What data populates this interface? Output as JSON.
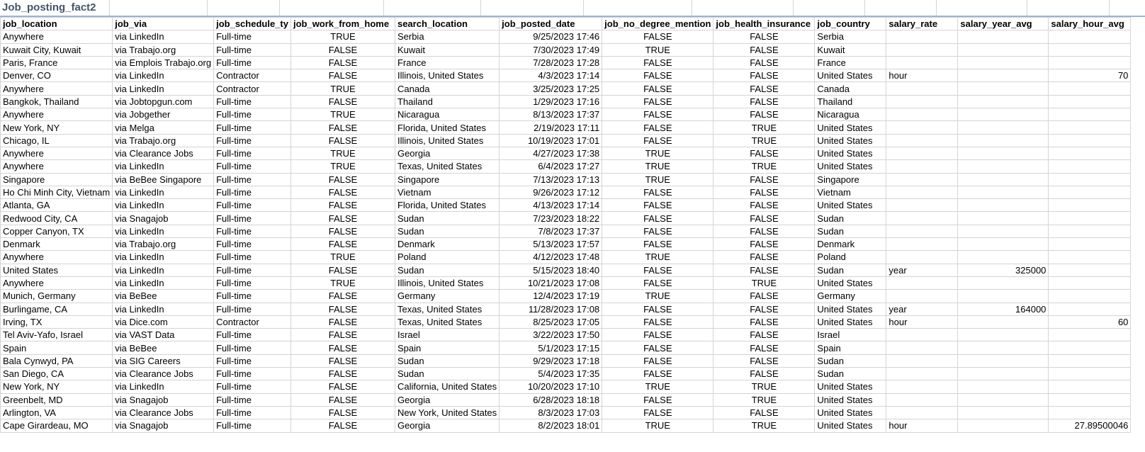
{
  "sheet_title": "Job_posting_fact2",
  "columns": [
    "job_location",
    "job_via",
    "job_schedule_ty",
    "job_work_from_home",
    "search_location",
    "job_posted_date",
    "job_no_degree_mention",
    "job_health_insurance",
    "job_country",
    "salary_rate",
    "salary_year_avg",
    "salary_hour_avg"
  ],
  "rows": [
    [
      "Anywhere",
      "via LinkedIn",
      "Full-time",
      "TRUE",
      "Serbia",
      "9/25/2023 17:46",
      "FALSE",
      "FALSE",
      "Serbia",
      "",
      "",
      ""
    ],
    [
      "Kuwait City, Kuwait",
      "via Trabajo.org",
      "Full-time",
      "FALSE",
      "Kuwait",
      "7/30/2023 17:49",
      "TRUE",
      "FALSE",
      "Kuwait",
      "",
      "",
      ""
    ],
    [
      "Paris, France",
      "via Emplois Trabajo.org",
      "Full-time",
      "FALSE",
      "France",
      "7/28/2023 17:28",
      "FALSE",
      "FALSE",
      "France",
      "",
      "",
      ""
    ],
    [
      "Denver, CO",
      "via LinkedIn",
      "Contractor",
      "FALSE",
      "Illinois, United States",
      "4/3/2023 17:14",
      "FALSE",
      "FALSE",
      "United States",
      "hour",
      "",
      "70"
    ],
    [
      "Anywhere",
      "via LinkedIn",
      "Contractor",
      "TRUE",
      "Canada",
      "3/25/2023 17:25",
      "FALSE",
      "FALSE",
      "Canada",
      "",
      "",
      ""
    ],
    [
      "Bangkok, Thailand",
      "via Jobtopgun.com",
      "Full-time",
      "FALSE",
      "Thailand",
      "1/29/2023 17:16",
      "FALSE",
      "FALSE",
      "Thailand",
      "",
      "",
      ""
    ],
    [
      "Anywhere",
      "via Jobgether",
      "Full-time",
      "TRUE",
      "Nicaragua",
      "8/13/2023 17:37",
      "FALSE",
      "FALSE",
      "Nicaragua",
      "",
      "",
      ""
    ],
    [
      "New York, NY",
      "via Melga",
      "Full-time",
      "FALSE",
      "Florida, United States",
      "2/19/2023 17:11",
      "FALSE",
      "TRUE",
      "United States",
      "",
      "",
      ""
    ],
    [
      "Chicago, IL",
      "via Trabajo.org",
      "Full-time",
      "FALSE",
      "Illinois, United States",
      "10/19/2023 17:01",
      "FALSE",
      "TRUE",
      "United States",
      "",
      "",
      ""
    ],
    [
      "Anywhere",
      "via Clearance Jobs",
      "Full-time",
      "TRUE",
      "Georgia",
      "4/27/2023 17:38",
      "TRUE",
      "FALSE",
      "United States",
      "",
      "",
      ""
    ],
    [
      "Anywhere",
      "via LinkedIn",
      "Full-time",
      "TRUE",
      "Texas, United States",
      "6/4/2023 17:27",
      "TRUE",
      "TRUE",
      "United States",
      "",
      "",
      ""
    ],
    [
      "Singapore",
      "via BeBee Singapore",
      "Full-time",
      "FALSE",
      "Singapore",
      "7/13/2023 17:13",
      "TRUE",
      "FALSE",
      "Singapore",
      "",
      "",
      ""
    ],
    [
      "Ho Chi Minh City, Vietnam",
      "via LinkedIn",
      "Full-time",
      "FALSE",
      "Vietnam",
      "9/26/2023 17:12",
      "FALSE",
      "FALSE",
      "Vietnam",
      "",
      "",
      ""
    ],
    [
      "Atlanta, GA",
      "via LinkedIn",
      "Full-time",
      "FALSE",
      "Florida, United States",
      "4/13/2023 17:14",
      "FALSE",
      "FALSE",
      "United States",
      "",
      "",
      ""
    ],
    [
      "Redwood City, CA",
      "via Snagajob",
      "Full-time",
      "FALSE",
      "Sudan",
      "7/23/2023 18:22",
      "FALSE",
      "FALSE",
      "Sudan",
      "",
      "",
      ""
    ],
    [
      "Copper Canyon, TX",
      "via LinkedIn",
      "Full-time",
      "FALSE",
      "Sudan",
      "7/8/2023 17:37",
      "FALSE",
      "FALSE",
      "Sudan",
      "",
      "",
      ""
    ],
    [
      "Denmark",
      "via Trabajo.org",
      "Full-time",
      "FALSE",
      "Denmark",
      "5/13/2023 17:57",
      "FALSE",
      "FALSE",
      "Denmark",
      "",
      "",
      ""
    ],
    [
      "Anywhere",
      "via LinkedIn",
      "Full-time",
      "TRUE",
      "Poland",
      "4/12/2023 17:48",
      "TRUE",
      "FALSE",
      "Poland",
      "",
      "",
      ""
    ],
    [
      "United States",
      "via LinkedIn",
      "Full-time",
      "FALSE",
      "Sudan",
      "5/15/2023 18:40",
      "FALSE",
      "FALSE",
      "Sudan",
      "year",
      "325000",
      ""
    ],
    [
      "Anywhere",
      "via LinkedIn",
      "Full-time",
      "TRUE",
      "Illinois, United States",
      "10/21/2023 17:08",
      "FALSE",
      "TRUE",
      "United States",
      "",
      "",
      ""
    ],
    [
      "Munich, Germany",
      "via BeBee",
      "Full-time",
      "FALSE",
      "Germany",
      "12/4/2023 17:19",
      "TRUE",
      "FALSE",
      "Germany",
      "",
      "",
      ""
    ],
    [
      "Burlingame, CA",
      "via LinkedIn",
      "Full-time",
      "FALSE",
      "Texas, United States",
      "11/28/2023 17:08",
      "FALSE",
      "FALSE",
      "United States",
      "year",
      "164000",
      ""
    ],
    [
      "Irving, TX",
      "via Dice.com",
      "Contractor",
      "FALSE",
      "Texas, United States",
      "8/25/2023 17:05",
      "FALSE",
      "FALSE",
      "United States",
      "hour",
      "",
      "60"
    ],
    [
      "Tel Aviv-Yafo, Israel",
      "via VAST Data",
      "Full-time",
      "FALSE",
      "Israel",
      "3/22/2023 17:50",
      "FALSE",
      "FALSE",
      "Israel",
      "",
      "",
      ""
    ],
    [
      "Spain",
      "via BeBee",
      "Full-time",
      "FALSE",
      "Spain",
      "5/1/2023 17:15",
      "FALSE",
      "FALSE",
      "Spain",
      "",
      "",
      ""
    ],
    [
      "Bala Cynwyd, PA",
      "via SIG Careers",
      "Full-time",
      "FALSE",
      "Sudan",
      "9/29/2023 17:18",
      "FALSE",
      "FALSE",
      "Sudan",
      "",
      "",
      ""
    ],
    [
      "San Diego, CA",
      "via Clearance Jobs",
      "Full-time",
      "FALSE",
      "Sudan",
      "5/4/2023 17:35",
      "FALSE",
      "FALSE",
      "Sudan",
      "",
      "",
      ""
    ],
    [
      "New York, NY",
      "via LinkedIn",
      "Full-time",
      "FALSE",
      "California, United States",
      "10/20/2023 17:10",
      "TRUE",
      "TRUE",
      "United States",
      "",
      "",
      ""
    ],
    [
      "Greenbelt, MD",
      "via Snagajob",
      "Full-time",
      "FALSE",
      "Georgia",
      "6/28/2023 18:18",
      "FALSE",
      "TRUE",
      "United States",
      "",
      "",
      ""
    ],
    [
      "Arlington, VA",
      "via Clearance Jobs",
      "Full-time",
      "FALSE",
      "New York, United States",
      "8/3/2023 17:03",
      "FALSE",
      "FALSE",
      "United States",
      "",
      "",
      ""
    ],
    [
      "Cape Girardeau, MO",
      "via Snagajob",
      "Full-time",
      "FALSE",
      "Georgia",
      "8/2/2023 18:01",
      "TRUE",
      "TRUE",
      "United States",
      "hour",
      "",
      "27.89500046"
    ]
  ]
}
